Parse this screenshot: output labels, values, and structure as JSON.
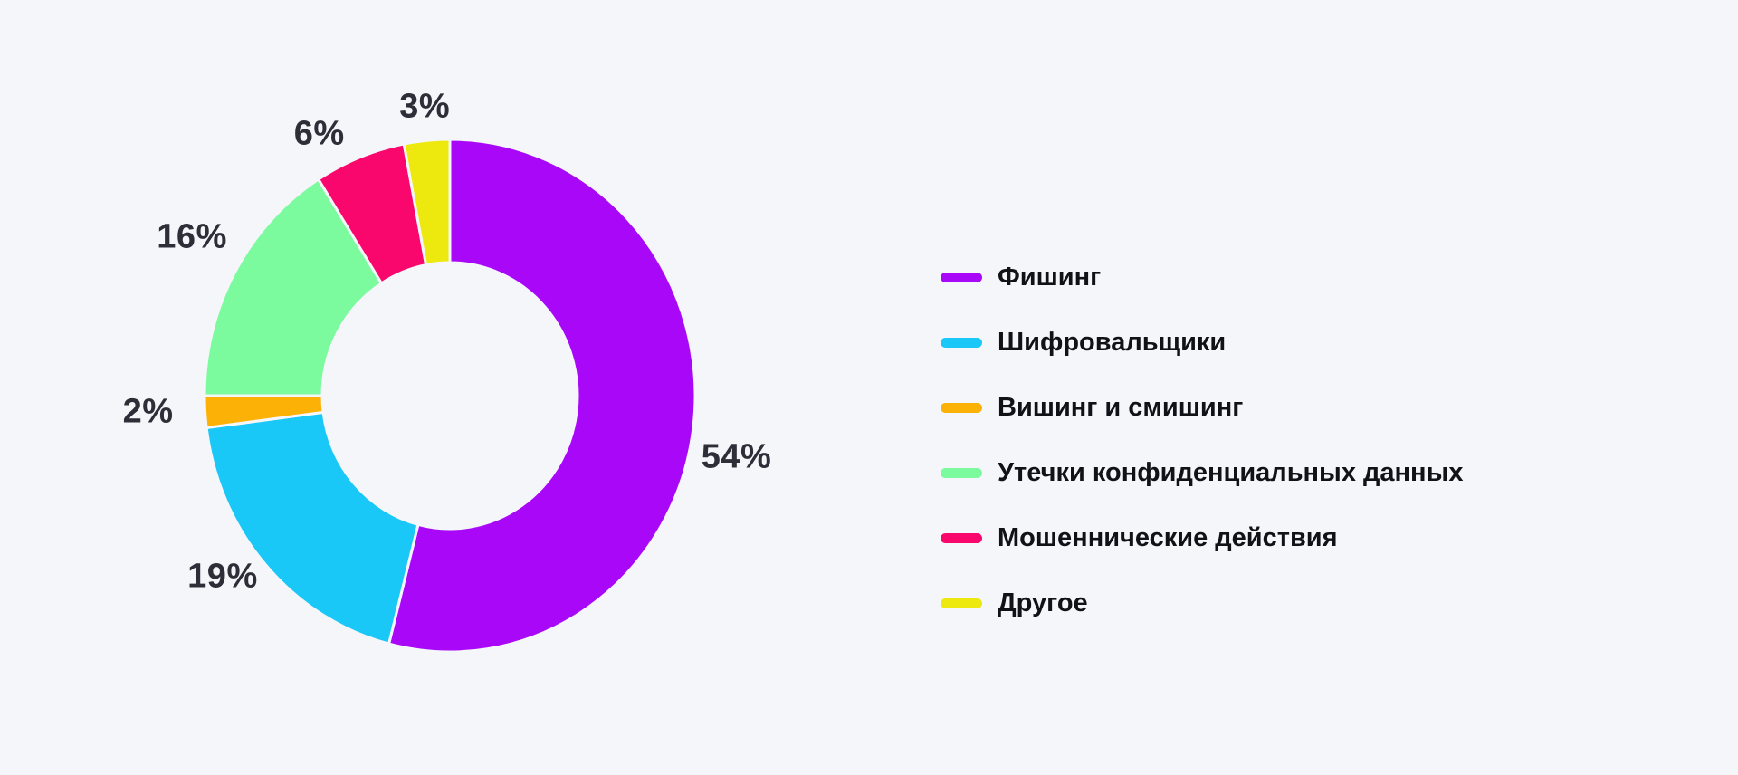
{
  "background_color": "#F5F6FA",
  "value_label_color": "#2E2E38",
  "legend_text_color": "#111118",
  "chart_data": {
    "type": "pie",
    "subtype": "donut",
    "title": "",
    "categories": [
      "Фишинг",
      "Шифровальщики",
      "Вишинг и смишинг",
      "Утечки конфиденциальных данных",
      "Мошеннические действия",
      "Другое"
    ],
    "values": [
      54,
      19,
      2,
      16,
      6,
      3
    ],
    "unit": "%",
    "value_labels": [
      "54%",
      "19%",
      "2%",
      "16%",
      "6%",
      "3%"
    ],
    "colors": [
      "#A807F8",
      "#1AC8F7",
      "#FCB106",
      "#7BFA9E",
      "#F9076C",
      "#EDE90F"
    ],
    "start_angle_deg": 0,
    "direction": "clockwise",
    "donut_hole_ratio": 0.52,
    "labels_position": "outside",
    "legend_position": "right",
    "grid": false
  }
}
